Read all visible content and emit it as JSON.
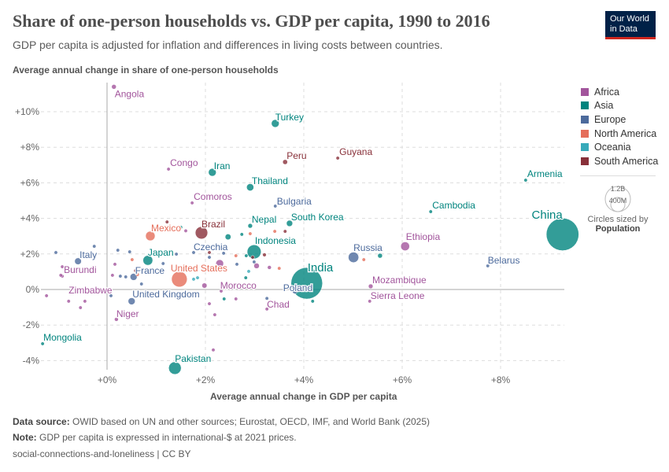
{
  "header": {
    "title": "Share of one-person households vs. GDP per capita, 1990 to 2016",
    "subtitle": "GDP per capita is adjusted for inflation and differences in living costs between countries.",
    "logo": "Our World in Data"
  },
  "footer": {
    "source_label": "Data source:",
    "source": "OWID based on UN and other sources; Eurostat, OECD, IMF, and World Bank (2025)",
    "note_label": "Note:",
    "note": "GDP per capita is expressed in international-$ at 2021 prices.",
    "slug": "social-connections-and-loneliness | CC BY"
  },
  "size_legend": {
    "large": "1.2B",
    "small": "400M",
    "caption": "Circles sized by",
    "variable": "Population"
  },
  "chart_data": {
    "type": "scatter",
    "xlabel": "Average annual change in GDP per capita",
    "ylabel": "Average annual change in share of one-person households",
    "xlim": [
      -1.3,
      9.4
    ],
    "ylim": [
      -4.5,
      11.5
    ],
    "xticks": [
      {
        "v": 0,
        "label": "+0%"
      },
      {
        "v": 2,
        "label": "+2%"
      },
      {
        "v": 4,
        "label": "+4%"
      },
      {
        "v": 6,
        "label": "+6%"
      },
      {
        "v": 8,
        "label": "+8%"
      }
    ],
    "yticks": [
      {
        "v": -4,
        "label": "-4%"
      },
      {
        "v": -2,
        "label": "-2%"
      },
      {
        "v": 0,
        "label": "0%"
      },
      {
        "v": 2,
        "label": "+2%"
      },
      {
        "v": 4,
        "label": "+4%"
      },
      {
        "v": 6,
        "label": "+6%"
      },
      {
        "v": 8,
        "label": "+8%"
      },
      {
        "v": 10,
        "label": "+10%"
      }
    ],
    "grid": true,
    "legend_position": "right",
    "size_variable": "Population",
    "regions": [
      {
        "name": "Africa",
        "color": "#a2559c"
      },
      {
        "name": "Asia",
        "color": "#00847e"
      },
      {
        "name": "Europe",
        "color": "#4c6a9c"
      },
      {
        "name": "North America",
        "color": "#e56e5a"
      },
      {
        "name": "Oceania",
        "color": "#38aaba"
      },
      {
        "name": "South America",
        "color": "#883039"
      }
    ],
    "labeled_points": [
      {
        "name": "Angola",
        "x": 0.14,
        "y": 11.4,
        "region": "Africa",
        "pop": 29
      },
      {
        "name": "Turkey",
        "x": 3.42,
        "y": 9.34,
        "region": "Asia",
        "pop": 80
      },
      {
        "name": "Peru",
        "x": 3.62,
        "y": 7.17,
        "region": "South America",
        "pop": 31
      },
      {
        "name": "Guyana",
        "x": 4.69,
        "y": 7.39,
        "region": "South America",
        "pop": 0.8
      },
      {
        "name": "Congo",
        "x": 1.25,
        "y": 6.77,
        "region": "Africa",
        "pop": 5
      },
      {
        "name": "Iran",
        "x": 2.14,
        "y": 6.59,
        "region": "Asia",
        "pop": 80
      },
      {
        "name": "Thailand",
        "x": 2.91,
        "y": 5.75,
        "region": "Asia",
        "pop": 69
      },
      {
        "name": "Armenia",
        "x": 8.51,
        "y": 6.15,
        "region": "Asia",
        "pop": 3
      },
      {
        "name": "Comoros",
        "x": 1.73,
        "y": 4.87,
        "region": "Africa",
        "pop": 0.8
      },
      {
        "name": "Bulgaria",
        "x": 3.42,
        "y": 4.69,
        "region": "Europe",
        "pop": 7
      },
      {
        "name": "Cambodia",
        "x": 6.58,
        "y": 4.38,
        "region": "Asia",
        "pop": 16
      },
      {
        "name": "China",
        "x": 9.26,
        "y": 3.1,
        "region": "Asia",
        "pop": 1410
      },
      {
        "name": "Brazil",
        "x": 1.92,
        "y": 3.19,
        "region": "South America",
        "pop": 206
      },
      {
        "name": "Nepal",
        "x": 2.91,
        "y": 3.58,
        "region": "Asia",
        "pop": 28
      },
      {
        "name": "South Korea",
        "x": 3.71,
        "y": 3.72,
        "region": "Asia",
        "pop": 51
      },
      {
        "name": "Mexico",
        "x": 0.88,
        "y": 3.01,
        "region": "North America",
        "pop": 120
      },
      {
        "name": "Indonesia",
        "x": 2.99,
        "y": 2.12,
        "region": "Asia",
        "pop": 258
      },
      {
        "name": "Ethiopia",
        "x": 6.06,
        "y": 2.43,
        "region": "Africa",
        "pop": 103
      },
      {
        "name": "Russia",
        "x": 5.01,
        "y": 1.81,
        "region": "Europe",
        "pop": 145
      },
      {
        "name": "Belarus",
        "x": 7.74,
        "y": 1.33,
        "region": "Europe",
        "pop": 9.5
      },
      {
        "name": "Italy",
        "x": -0.59,
        "y": 1.59,
        "region": "Europe",
        "pop": 60
      },
      {
        "name": "Japan",
        "x": 0.83,
        "y": 1.64,
        "region": "Asia",
        "pop": 127
      },
      {
        "name": "Czechia",
        "x": 1.76,
        "y": 2.08,
        "region": "Europe",
        "pop": 10.6
      },
      {
        "name": "India",
        "x": 4.06,
        "y": 0.35,
        "region": "Asia",
        "pop": 1320
      },
      {
        "name": "Poland",
        "x": 3.82,
        "y": -0.09,
        "region": "Europe",
        "pop": 38
      },
      {
        "name": "Burundi",
        "x": -0.91,
        "y": 0.75,
        "region": "Africa",
        "pop": 10
      },
      {
        "name": "France",
        "x": 0.54,
        "y": 0.71,
        "region": "Europe",
        "pop": 65
      },
      {
        "name": "United States",
        "x": 1.47,
        "y": 0.58,
        "region": "North America",
        "pop": 323
      },
      {
        "name": "Mozambique",
        "x": 5.36,
        "y": 0.18,
        "region": "Africa",
        "pop": 28
      },
      {
        "name": "Morocco",
        "x": 1.98,
        "y": 0.22,
        "region": "Africa",
        "pop": 35
      },
      {
        "name": "Zimbabwe",
        "x": -0.78,
        "y": -0.66,
        "region": "Africa",
        "pop": 14
      },
      {
        "name": "United Kingdom",
        "x": 0.5,
        "y": -0.66,
        "region": "Europe",
        "pop": 65
      },
      {
        "name": "Sierra Leone",
        "x": 5.34,
        "y": -0.66,
        "region": "Africa",
        "pop": 7.4
      },
      {
        "name": "Chad",
        "x": 3.25,
        "y": -1.1,
        "region": "Africa",
        "pop": 14
      },
      {
        "name": "Niger",
        "x": 0.19,
        "y": -1.68,
        "region": "Africa",
        "pop": 20
      },
      {
        "name": "Mongolia",
        "x": -1.31,
        "y": -3.05,
        "region": "Asia",
        "pop": 3
      },
      {
        "name": "Pakistan",
        "x": 1.38,
        "y": -4.42,
        "region": "Asia",
        "pop": 210
      }
    ],
    "other_points": [
      {
        "x": -1.04,
        "y": 2.08,
        "region": "Europe",
        "pop": 5
      },
      {
        "x": -0.26,
        "y": 2.43,
        "region": "Europe",
        "pop": 5
      },
      {
        "x": 0.22,
        "y": 2.21,
        "region": "Europe",
        "pop": 5
      },
      {
        "x": 0.46,
        "y": 2.12,
        "region": "Europe",
        "pop": 5
      },
      {
        "x": 0.27,
        "y": 0.75,
        "region": "Europe",
        "pop": 10
      },
      {
        "x": 0.38,
        "y": 0.71,
        "region": "Europe",
        "pop": 10
      },
      {
        "x": 1.14,
        "y": 1.46,
        "region": "Europe",
        "pop": 5
      },
      {
        "x": 1.41,
        "y": 1.99,
        "region": "Europe",
        "pop": 5
      },
      {
        "x": 2.37,
        "y": 2.04,
        "region": "Europe",
        "pop": 5
      },
      {
        "x": 2.64,
        "y": 1.42,
        "region": "Europe",
        "pop": 4
      },
      {
        "x": 2.99,
        "y": 1.55,
        "region": "Europe",
        "pop": 4
      },
      {
        "x": 2.08,
        "y": 1.81,
        "region": "Europe",
        "pop": 4
      },
      {
        "x": 3.84,
        "y": 0.0,
        "region": "Europe",
        "pop": 10
      },
      {
        "x": 0.7,
        "y": 0.31,
        "region": "Europe",
        "pop": 5
      },
      {
        "x": 1.18,
        "y": -0.18,
        "region": "Europe",
        "pop": 5
      },
      {
        "x": 0.08,
        "y": -0.35,
        "region": "Europe",
        "pop": 3
      },
      {
        "x": 2.45,
        "y": 0.27,
        "region": "Europe",
        "pop": 4
      },
      {
        "x": 3.25,
        "y": -0.5,
        "region": "Europe",
        "pop": 3
      },
      {
        "x": -0.91,
        "y": 1.28,
        "region": "Africa",
        "pop": 5
      },
      {
        "x": -0.94,
        "y": 0.8,
        "region": "Africa",
        "pop": 5
      },
      {
        "x": -1.23,
        "y": -0.35,
        "region": "Africa",
        "pop": 5
      },
      {
        "x": -0.45,
        "y": -0.66,
        "region": "Africa",
        "pop": 10
      },
      {
        "x": -0.54,
        "y": -1.02,
        "region": "Africa",
        "pop": 10
      },
      {
        "x": 0.11,
        "y": 0.8,
        "region": "Africa",
        "pop": 5
      },
      {
        "x": 0.16,
        "y": 1.42,
        "region": "Africa",
        "pop": 5
      },
      {
        "x": 2.19,
        "y": -1.42,
        "region": "Africa",
        "pop": 4
      },
      {
        "x": 2.08,
        "y": -0.8,
        "region": "Africa",
        "pop": 4
      },
      {
        "x": 2.32,
        "y": -0.09,
        "region": "Africa",
        "pop": 8
      },
      {
        "x": 2.29,
        "y": 1.46,
        "region": "Africa",
        "pop": 80
      },
      {
        "x": 3.04,
        "y": 1.33,
        "region": "Africa",
        "pop": 40
      },
      {
        "x": 3.3,
        "y": 1.24,
        "region": "Africa",
        "pop": 20
      },
      {
        "x": 2.62,
        "y": -0.53,
        "region": "Africa",
        "pop": 5
      },
      {
        "x": 2.16,
        "y": -3.4,
        "region": "Africa",
        "pop": 4
      },
      {
        "x": 1.6,
        "y": 3.3,
        "region": "Africa",
        "pop": 5
      },
      {
        "x": 2.46,
        "y": 2.96,
        "region": "Asia",
        "pop": 45
      },
      {
        "x": 2.74,
        "y": 3.1,
        "region": "Asia",
        "pop": 4
      },
      {
        "x": 2.82,
        "y": 0.66,
        "region": "Asia",
        "pop": 4
      },
      {
        "x": 2.83,
        "y": 1.9,
        "region": "Asia",
        "pop": 4
      },
      {
        "x": 2.38,
        "y": -0.53,
        "region": "Asia",
        "pop": 4
      },
      {
        "x": 4.18,
        "y": -0.66,
        "region": "Asia",
        "pop": 8
      },
      {
        "x": 5.55,
        "y": 1.9,
        "region": "Asia",
        "pop": 30
      },
      {
        "x": 1.5,
        "y": 3.5,
        "region": "Asia",
        "pop": 4
      },
      {
        "x": 3.62,
        "y": 3.27,
        "region": "South America",
        "pop": 4
      },
      {
        "x": 3.2,
        "y": 1.95,
        "region": "South America",
        "pop": 18
      },
      {
        "x": 2.96,
        "y": 1.81,
        "region": "South America",
        "pop": 5
      },
      {
        "x": 2.08,
        "y": 2.08,
        "region": "South America",
        "pop": 6
      },
      {
        "x": 0.58,
        "y": 1.06,
        "region": "South America",
        "pop": 5
      },
      {
        "x": 1.22,
        "y": 3.8,
        "region": "South America",
        "pop": 3
      },
      {
        "x": 0.51,
        "y": 1.68,
        "region": "North America",
        "pop": 5
      },
      {
        "x": 0.62,
        "y": 0.84,
        "region": "North America",
        "pop": 5
      },
      {
        "x": 2.62,
        "y": 1.9,
        "region": "North America",
        "pop": 5
      },
      {
        "x": 2.91,
        "y": 3.14,
        "region": "North America",
        "pop": 4
      },
      {
        "x": 3.41,
        "y": 3.27,
        "region": "North America",
        "pop": 4
      },
      {
        "x": 5.22,
        "y": 1.68,
        "region": "North America",
        "pop": 4
      },
      {
        "x": 3.5,
        "y": 1.19,
        "region": "North America",
        "pop": 5
      },
      {
        "x": 1.76,
        "y": 0.58,
        "region": "Oceania",
        "pop": 10
      },
      {
        "x": 1.84,
        "y": 0.66,
        "region": "Oceania",
        "pop": 5
      },
      {
        "x": 2.88,
        "y": 1.02,
        "region": "Oceania",
        "pop": 4
      }
    ]
  }
}
